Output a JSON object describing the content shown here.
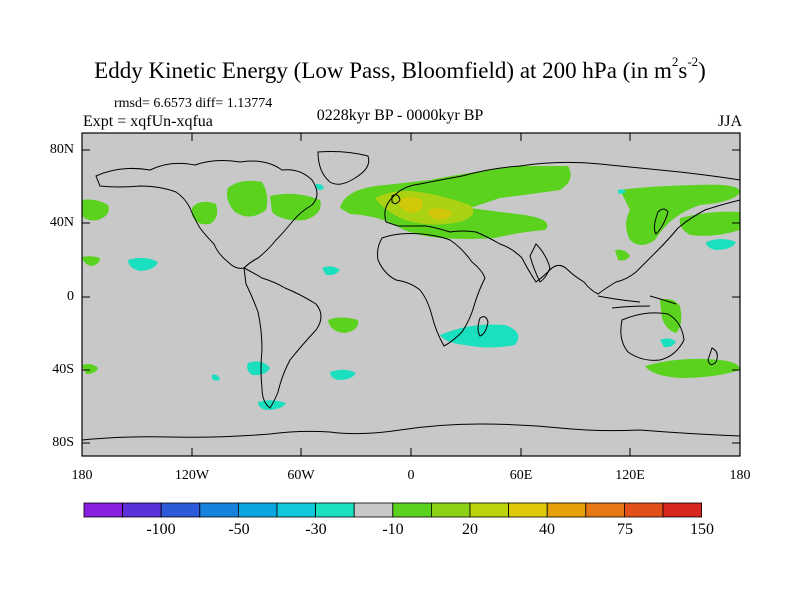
{
  "title": {
    "main": "Eddy Kinetic Energy (Low Pass, Bloomfield) at 200 hPa (in m",
    "sup1": "2",
    "mid": "s",
    "sup2": "-2",
    "end": ")"
  },
  "stats": "rmsd= 6.6573  diff= 1.13774",
  "expt": "Expt = xqfUn-xqfua",
  "period": "0228kyr BP - 0000kyr BP",
  "season": "JJA",
  "axes": {
    "y_labels": [
      "80N",
      "40N",
      "0",
      "40S",
      "80S"
    ],
    "x_labels": [
      "180",
      "120W",
      "60W",
      "0",
      "60E",
      "120E",
      "180"
    ]
  },
  "colorbar": {
    "labels": [
      "-100",
      "-50",
      "-30",
      "-10",
      "20",
      "40",
      "75",
      "150"
    ],
    "colors": [
      "#8a1ee0",
      "#5a32d8",
      "#2c5ad8",
      "#1682dc",
      "#0aa6e0",
      "#10c8dc",
      "#1ae0c0",
      "#c8c8c8",
      "#5ad21e",
      "#8cd214",
      "#bcd20a",
      "#e0c80a",
      "#e6a00a",
      "#e67814",
      "#e2501a",
      "#d6261e"
    ]
  },
  "colors": {
    "land_bg": "#c8c8c8",
    "positive_low": "#5ad21e",
    "positive_mid": "#a0d20e",
    "positive_high": "#d2c80a",
    "negative_low": "#1ae0c0"
  }
}
